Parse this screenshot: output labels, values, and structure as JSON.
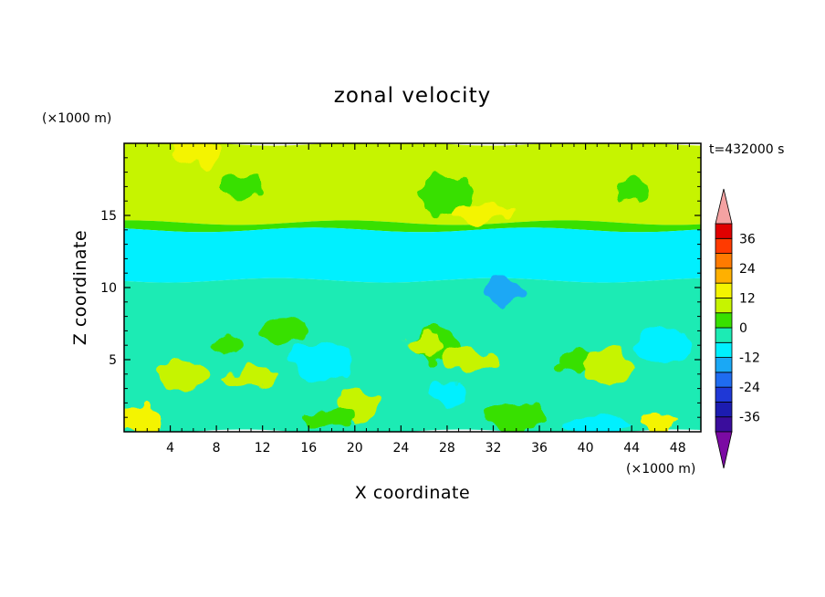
{
  "chart_data": {
    "type": "heatmap",
    "title": "zonal velocity",
    "xlabel": "X coordinate",
    "ylabel": "Z coordinate",
    "x_unit": "(×1000 m)",
    "y_unit": "(×1000 m)",
    "time_label": "t=432000 s",
    "xlim": [
      0,
      50
    ],
    "ylim": [
      0,
      20
    ],
    "xticks": [
      4,
      8,
      12,
      16,
      20,
      24,
      28,
      32,
      36,
      40,
      44,
      48
    ],
    "yticks": [
      5,
      10,
      15
    ],
    "colorbar": {
      "levels": [
        -42,
        -36,
        -30,
        -24,
        -18,
        -12,
        -6,
        0,
        6,
        12,
        18,
        24,
        30,
        36,
        42
      ],
      "tick_labels": [
        "36",
        "24",
        "12",
        "0",
        "-12",
        "-24",
        "-36"
      ],
      "tick_values": [
        36,
        24,
        12,
        0,
        -12,
        -24,
        -36
      ],
      "colors": [
        "#7b0aa3",
        "#3a0d9c",
        "#1c1cb0",
        "#1f38d6",
        "#1f6cf0",
        "#1aa8f5",
        "#00f0ff",
        "#1cebb4",
        "#38e000",
        "#c6f400",
        "#f4f400",
        "#ffb000",
        "#ff7a00",
        "#ff3a00",
        "#e00000",
        "#f4a2a2"
      ],
      "extend": "both"
    },
    "layers": [
      {
        "z_range": [
          14.5,
          20
        ],
        "value": 9,
        "note": "upper layer"
      },
      {
        "z_range": [
          14.0,
          14.5
        ],
        "value": 3
      },
      {
        "z_range": [
          10.5,
          14.0
        ],
        "value": -9
      },
      {
        "z_range": [
          0,
          10.5
        ],
        "value": -3
      }
    ],
    "patches": [
      {
        "x": 9,
        "z": 6,
        "value": 3
      },
      {
        "x": 14,
        "z": 7,
        "value": 3
      },
      {
        "x": 27,
        "z": 6,
        "value": 3
      },
      {
        "x": 39,
        "z": 5,
        "value": 3
      },
      {
        "x": 5,
        "z": 4,
        "value": 9
      },
      {
        "x": 11,
        "z": 3.8,
        "value": 9
      },
      {
        "x": 26,
        "z": 6,
        "value": 9
      },
      {
        "x": 42,
        "z": 4.5,
        "value": 9
      },
      {
        "x": 30,
        "z": 5,
        "value": 9
      },
      {
        "x": 20,
        "z": 1.8,
        "value": 9
      },
      {
        "x": 18,
        "z": 1,
        "value": 3
      },
      {
        "x": 34,
        "z": 1,
        "value": 3
      },
      {
        "x": 46,
        "z": 0.8,
        "value": 15
      },
      {
        "x": 1,
        "z": 0.8,
        "value": 15
      },
      {
        "x": 17,
        "z": 5,
        "value": -9
      },
      {
        "x": 28,
        "z": 2.5,
        "value": -9
      },
      {
        "x": 47,
        "z": 6,
        "value": -9
      },
      {
        "x": 41,
        "z": 0.4,
        "value": -9
      },
      {
        "x": 10,
        "z": 17,
        "value": 3
      },
      {
        "x": 28,
        "z": 16.5,
        "value": 3
      },
      {
        "x": 44,
        "z": 16.8,
        "value": 3
      },
      {
        "x": 6,
        "z": 19.6,
        "value": 15
      },
      {
        "x": 31,
        "z": 15.2,
        "value": 15
      },
      {
        "x": 33,
        "z": 9.8,
        "value": -15
      }
    ]
  }
}
